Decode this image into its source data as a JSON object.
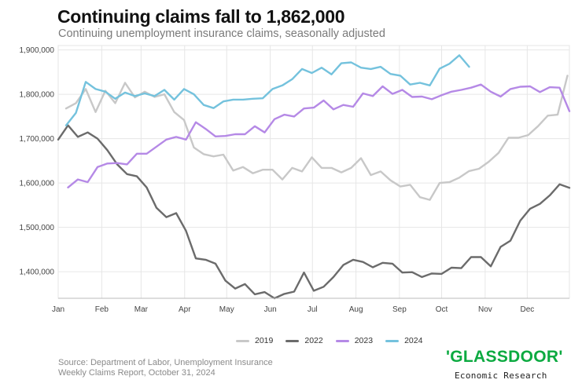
{
  "header": {
    "title": "Continuing claims fall to 1,862,000",
    "subtitle": "Continuing unemployment insurance claims, seasonally adjusted"
  },
  "footer": {
    "source_line1": "Source: Department of Labor, Unemployment Insurance",
    "source_line2": "Weekly Claims Report, October 31, 2024",
    "logo_text": "'GLASSDOOR'",
    "logo_sub": "Economic Research"
  },
  "colors": {
    "2019": "#c8c8c8",
    "2022": "#6b6b6b",
    "2023": "#b589e6",
    "2024": "#74c2dd"
  },
  "chart_data": {
    "type": "line",
    "title": "Continuing claims fall to 1,862,000",
    "subtitle": "Continuing unemployment insurance claims, seasonally adjusted",
    "x_unit": "week of year",
    "xlim": [
      1,
      53
    ],
    "ylim": [
      1340000,
      1910000
    ],
    "yticks": [
      1400000,
      1500000,
      1600000,
      1700000,
      1800000,
      1900000
    ],
    "ytick_labels": [
      "1,400,000",
      "1,500,000",
      "1,600,000",
      "1,700,000",
      "1,800,000",
      "1,900,000"
    ],
    "xtick_positions": [
      1,
      5.43,
      9.43,
      13.86,
      18.14,
      22.57,
      26.86,
      31.29,
      35.71,
      40,
      44.43,
      48.71
    ],
    "xtick_labels": [
      "Jan",
      "Feb",
      "Mar",
      "Apr",
      "May",
      "Jun",
      "Jul",
      "Aug",
      "Sep",
      "Oct",
      "Nov",
      "Dec"
    ],
    "grid": true,
    "legend": [
      "2019",
      "2022",
      "2023",
      "2024"
    ],
    "legend_position": "bottom-center",
    "series": [
      {
        "name": "2019",
        "start_week": 1.8,
        "values": [
          1768000,
          1780000,
          1812000,
          1760000,
          1808000,
          1780000,
          1826000,
          1793000,
          1806000,
          1794000,
          1800000,
          1760000,
          1742000,
          1680000,
          1665000,
          1660000,
          1664000,
          1628000,
          1636000,
          1622000,
          1630000,
          1630000,
          1608000,
          1634000,
          1626000,
          1658000,
          1634000,
          1634000,
          1624000,
          1634000,
          1656000,
          1618000,
          1626000,
          1606000,
          1592000,
          1596000,
          1568000,
          1562000,
          1600000,
          1602000,
          1612000,
          1627000,
          1632000,
          1648000,
          1668000,
          1702000,
          1702000,
          1708000,
          1728000,
          1752000,
          1754000,
          1842000
        ]
      },
      {
        "name": "2022",
        "start_week": 1,
        "values": [
          1698000,
          1730000,
          1704000,
          1714000,
          1700000,
          1674000,
          1642000,
          1620000,
          1615000,
          1590000,
          1544000,
          1523000,
          1532000,
          1492000,
          1430000,
          1427000,
          1418000,
          1380000,
          1362000,
          1372000,
          1349000,
          1354000,
          1340000,
          1350000,
          1355000,
          1398000,
          1357000,
          1366000,
          1388000,
          1415000,
          1427000,
          1422000,
          1410000,
          1420000,
          1418000,
          1398000,
          1399000,
          1388000,
          1396000,
          1395000,
          1409000,
          1408000,
          1433000,
          1433000,
          1412000,
          1456000,
          1470000,
          1515000,
          1542000,
          1553000,
          1572000,
          1597000,
          1589000
        ]
      },
      {
        "name": "2023",
        "start_week": 2,
        "values": [
          1590000,
          1608000,
          1602000,
          1636000,
          1644000,
          1645000,
          1642000,
          1666000,
          1666000,
          1682000,
          1698000,
          1704000,
          1698000,
          1737000,
          1722000,
          1705000,
          1706000,
          1710000,
          1710000,
          1728000,
          1714000,
          1744000,
          1754000,
          1750000,
          1768000,
          1770000,
          1786000,
          1766000,
          1776000,
          1772000,
          1802000,
          1796000,
          1818000,
          1801000,
          1810000,
          1794000,
          1795000,
          1789000,
          1798000,
          1806000,
          1810000,
          1815000,
          1822000,
          1806000,
          1795000,
          1812000,
          1817000,
          1818000,
          1805000,
          1816000,
          1815000,
          1762000
        ]
      },
      {
        "name": "2024",
        "start_week": 1.8,
        "values": [
          1730000,
          1758000,
          1828000,
          1812000,
          1806000,
          1790000,
          1804000,
          1796000,
          1802000,
          1796000,
          1810000,
          1788000,
          1812000,
          1800000,
          1776000,
          1769000,
          1784000,
          1788000,
          1788000,
          1790000,
          1791000,
          1812000,
          1820000,
          1834000,
          1857000,
          1848000,
          1860000,
          1845000,
          1870000,
          1872000,
          1860000,
          1857000,
          1862000,
          1846000,
          1842000,
          1822000,
          1826000,
          1820000,
          1858000,
          1869000,
          1888000,
          1862000
        ]
      }
    ]
  }
}
